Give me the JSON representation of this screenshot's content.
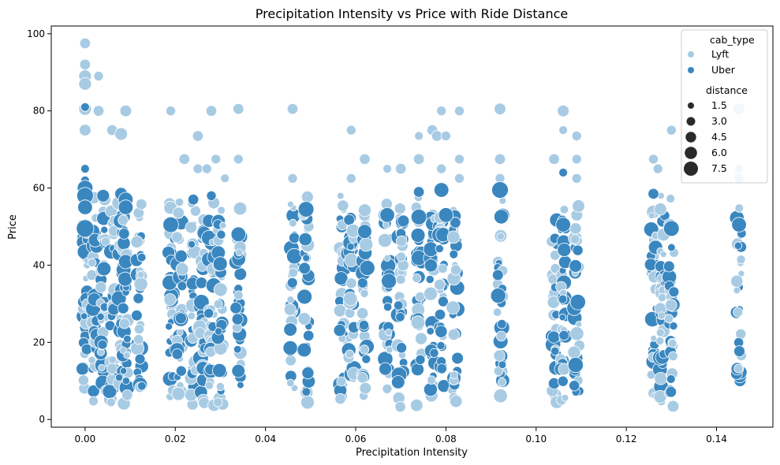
{
  "chart_data": {
    "type": "scatter",
    "title": "Precipitation Intensity vs Price with Ride Distance",
    "xlabel": "Precipitation Intensity",
    "ylabel": "Price",
    "xlim": [
      -0.0075,
      0.1525
    ],
    "ylim": [
      -2,
      102
    ],
    "x_ticks": [
      0.0,
      0.02,
      0.04,
      0.06,
      0.08,
      0.1,
      0.12,
      0.14
    ],
    "x_tick_labels": [
      "0.00",
      "0.02",
      "0.04",
      "0.06",
      "0.08",
      "0.10",
      "0.12",
      "0.14"
    ],
    "y_ticks": [
      0,
      20,
      40,
      60,
      80,
      100
    ],
    "y_tick_labels": [
      "0",
      "20",
      "40",
      "60",
      "80",
      "100"
    ],
    "grid": false,
    "legend": {
      "placement": "top-right",
      "hue_title": "cab_type",
      "hue_entries": [
        {
          "label": "Lyft",
          "color": "#a8cbe4"
        },
        {
          "label": "Uber",
          "color": "#3a87c0"
        }
      ],
      "size_title": "distance",
      "size_entries": [
        "1.5",
        "3.0",
        "4.5",
        "6.0",
        "7.5"
      ]
    },
    "precip_columns": [
      0.0,
      0.002,
      0.004,
      0.006,
      0.008,
      0.009,
      0.012,
      0.019,
      0.021,
      0.024,
      0.026,
      0.028,
      0.03,
      0.034,
      0.046,
      0.049,
      0.057,
      0.059,
      0.062,
      0.067,
      0.07,
      0.074,
      0.077,
      0.079,
      0.082,
      0.092,
      0.104,
      0.106,
      0.109,
      0.126,
      0.128,
      0.13,
      0.145
    ],
    "series": [
      {
        "name": "Lyft",
        "color": "#a8cbe4",
        "high_points": [
          {
            "x": 0.0,
            "y": 97.5,
            "d": 3.0
          },
          {
            "x": 0.0,
            "y": 92,
            "d": 3.0
          },
          {
            "x": 0.0,
            "y": 89,
            "d": 4.0
          },
          {
            "x": 0.0,
            "y": 87,
            "d": 4.0
          },
          {
            "x": 0.003,
            "y": 89,
            "d": 2.5
          },
          {
            "x": 0.0,
            "y": 80.5,
            "d": 4.0
          },
          {
            "x": 0.003,
            "y": 80,
            "d": 3.0
          },
          {
            "x": 0.009,
            "y": 80,
            "d": 3.5
          },
          {
            "x": 0.019,
            "y": 80,
            "d": 2.5
          },
          {
            "x": 0.028,
            "y": 80,
            "d": 3.0
          },
          {
            "x": 0.034,
            "y": 80.5,
            "d": 3.0
          },
          {
            "x": 0.046,
            "y": 80.5,
            "d": 3.0
          },
          {
            "x": 0.079,
            "y": 80,
            "d": 2.5
          },
          {
            "x": 0.083,
            "y": 80,
            "d": 2.5
          },
          {
            "x": 0.092,
            "y": 80.5,
            "d": 3.5
          },
          {
            "x": 0.106,
            "y": 80,
            "d": 3.5
          },
          {
            "x": 0.145,
            "y": 80.5,
            "d": 3.5
          },
          {
            "x": 0.006,
            "y": 75,
            "d": 3.0
          },
          {
            "x": 0.008,
            "y": 74,
            "d": 4.0
          },
          {
            "x": 0.0,
            "y": 75,
            "d": 3.5
          },
          {
            "x": 0.025,
            "y": 73.5,
            "d": 3.0
          },
          {
            "x": 0.059,
            "y": 75,
            "d": 2.5
          },
          {
            "x": 0.074,
            "y": 73.5,
            "d": 2.0
          },
          {
            "x": 0.077,
            "y": 75,
            "d": 3.0
          },
          {
            "x": 0.078,
            "y": 73.5,
            "d": 3.0
          },
          {
            "x": 0.08,
            "y": 73.5,
            "d": 2.5
          },
          {
            "x": 0.106,
            "y": 75,
            "d": 2.0
          },
          {
            "x": 0.109,
            "y": 73.5,
            "d": 2.5
          },
          {
            "x": 0.13,
            "y": 75,
            "d": 2.5
          },
          {
            "x": 0.022,
            "y": 67.5,
            "d": 3.0
          },
          {
            "x": 0.029,
            "y": 67.5,
            "d": 2.5
          },
          {
            "x": 0.034,
            "y": 67.5,
            "d": 2.5
          },
          {
            "x": 0.062,
            "y": 67.5,
            "d": 3.0
          },
          {
            "x": 0.074,
            "y": 67.5,
            "d": 3.0
          },
          {
            "x": 0.083,
            "y": 67.5,
            "d": 2.5
          },
          {
            "x": 0.092,
            "y": 67.5,
            "d": 3.0
          },
          {
            "x": 0.104,
            "y": 67.5,
            "d": 3.0
          },
          {
            "x": 0.109,
            "y": 67.5,
            "d": 2.5
          },
          {
            "x": 0.126,
            "y": 67.5,
            "d": 2.5
          },
          {
            "x": 0.025,
            "y": 65,
            "d": 2.5
          },
          {
            "x": 0.027,
            "y": 65,
            "d": 2.5
          },
          {
            "x": 0.067,
            "y": 65,
            "d": 2.0
          },
          {
            "x": 0.07,
            "y": 65,
            "d": 3.0
          },
          {
            "x": 0.079,
            "y": 65,
            "d": 2.5
          },
          {
            "x": 0.127,
            "y": 65,
            "d": 2.5
          },
          {
            "x": 0.145,
            "y": 65,
            "d": 2.0
          },
          {
            "x": 0.046,
            "y": 62.5,
            "d": 2.5
          },
          {
            "x": 0.031,
            "y": 62.5,
            "d": 2.0
          },
          {
            "x": 0.059,
            "y": 62.5,
            "d": 2.5
          },
          {
            "x": 0.083,
            "y": 62.5,
            "d": 2.5
          },
          {
            "x": 0.092,
            "y": 62.5,
            "d": 2.5
          },
          {
            "x": 0.109,
            "y": 62.5,
            "d": 2.5
          },
          {
            "x": 0.145,
            "y": 62.5,
            "d": 2.5
          }
        ]
      },
      {
        "name": "Uber",
        "color": "#3a87c0",
        "high_points": [
          {
            "x": 0.0,
            "y": 81,
            "d": 2.0
          },
          {
            "x": 0.0,
            "y": 65,
            "d": 2.0
          },
          {
            "x": 0.0,
            "y": 62,
            "d": 2.0
          },
          {
            "x": 0.0,
            "y": 60,
            "d": 5.5
          },
          {
            "x": 0.0,
            "y": 58,
            "d": 6.0
          },
          {
            "x": 0.004,
            "y": 58,
            "d": 4.0
          },
          {
            "x": 0.008,
            "y": 58.5,
            "d": 4.0
          },
          {
            "x": 0.009,
            "y": 57,
            "d": 5.0
          },
          {
            "x": 0.024,
            "y": 57,
            "d": 3.0
          },
          {
            "x": 0.028,
            "y": 58,
            "d": 2.5
          },
          {
            "x": 0.074,
            "y": 59,
            "d": 3.0
          },
          {
            "x": 0.079,
            "y": 59.5,
            "d": 5.0
          },
          {
            "x": 0.092,
            "y": 59.5,
            "d": 6.0
          },
          {
            "x": 0.106,
            "y": 64,
            "d": 2.0
          },
          {
            "x": 0.126,
            "y": 58.5,
            "d": 3.0
          },
          {
            "x": 0.0,
            "y": 55,
            "d": 5.0
          },
          {
            "x": 0.009,
            "y": 55,
            "d": 5.0
          },
          {
            "x": 0.049,
            "y": 54.5,
            "d": 5.5
          },
          {
            "x": 0.067,
            "y": 53,
            "d": 5.0
          },
          {
            "x": 0.074,
            "y": 52.5,
            "d": 5.5
          },
          {
            "x": 0.08,
            "y": 53,
            "d": 5.0
          },
          {
            "x": 0.019,
            "y": 50.5,
            "d": 5.5
          },
          {
            "x": 0.106,
            "y": 50.5,
            "d": 5.0
          },
          {
            "x": 0.13,
            "y": 49.5,
            "d": 5.5
          },
          {
            "x": 0.145,
            "y": 50.5,
            "d": 5.0
          },
          {
            "x": 0.0,
            "y": 49.5,
            "d": 6.5
          },
          {
            "x": 0.034,
            "y": 48,
            "d": 5.0
          }
        ]
      }
    ]
  }
}
